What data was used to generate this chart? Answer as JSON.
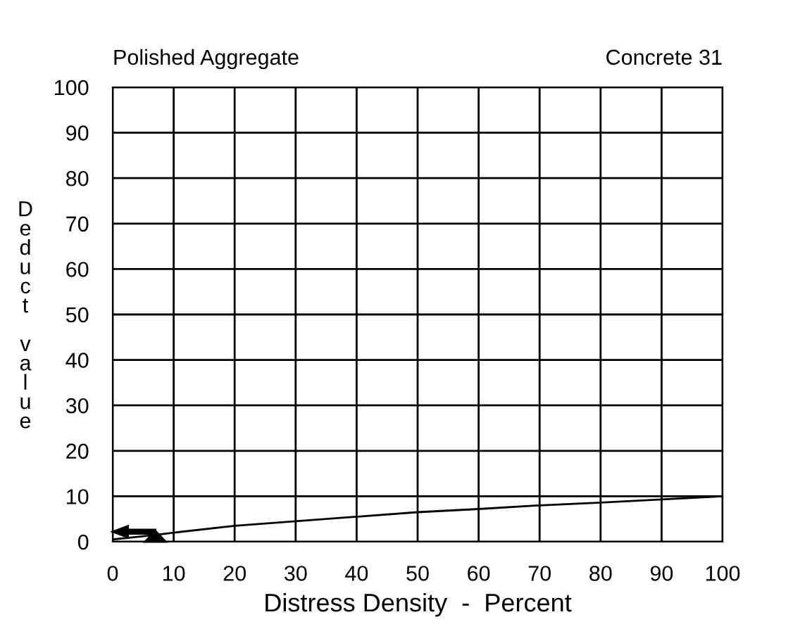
{
  "chart_data": {
    "type": "line",
    "title": "Polished Aggregate",
    "subtitle": "Concrete 31",
    "xlabel": "Distress Density  -  Percent",
    "ylabel": "Deduct value",
    "x": [
      0,
      7,
      10,
      20,
      30,
      40,
      50,
      60,
      70,
      80,
      90,
      100
    ],
    "series": [
      {
        "color": "#000000",
        "values": [
          0.5,
          1.5,
          2,
          3.5,
          4.5,
          5.5,
          6.5,
          7.2,
          8,
          8.6,
          9.3,
          10
        ]
      }
    ],
    "xlim": [
      0,
      100
    ],
    "ylim": [
      0,
      100
    ],
    "xticks": [
      0,
      10,
      20,
      30,
      40,
      50,
      60,
      70,
      80,
      90,
      100
    ],
    "yticks": [
      0,
      10,
      20,
      30,
      40,
      50,
      60,
      70,
      80,
      90,
      100
    ],
    "grid": true,
    "marker": "none",
    "line_style": "solid"
  }
}
